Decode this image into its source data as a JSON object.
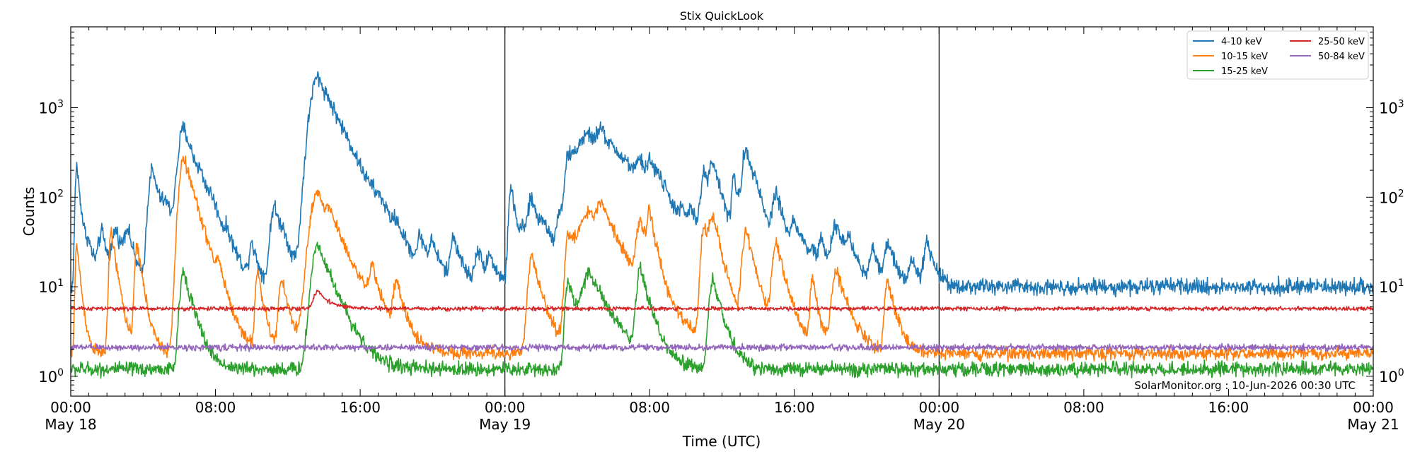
{
  "chart_data": {
    "type": "line",
    "title": "Stix QuickLook",
    "xlabel": "Time (UTC)",
    "ylabel": "Counts",
    "yscale": "log",
    "ylim": [
      0.6,
      8000
    ],
    "xlim": [
      "2026-05-18 00:00",
      "2026-05-21 00:00"
    ],
    "grid": false,
    "legend_position": "top-right",
    "y_ticks": [
      {
        "value": 1,
        "base": "10",
        "exp": "0"
      },
      {
        "value": 10,
        "base": "10",
        "exp": "1"
      },
      {
        "value": 100,
        "base": "10",
        "exp": "2"
      },
      {
        "value": 1000,
        "base": "10",
        "exp": "3"
      }
    ],
    "x_ticks": [
      {
        "x": "2026-05-18 00:00",
        "time": "00:00",
        "date": "May 18"
      },
      {
        "x": "2026-05-18 08:00",
        "time": "08:00",
        "date": ""
      },
      {
        "x": "2026-05-18 16:00",
        "time": "16:00",
        "date": ""
      },
      {
        "x": "2026-05-19 00:00",
        "time": "00:00",
        "date": "May 19"
      },
      {
        "x": "2026-05-19 08:00",
        "time": "08:00",
        "date": ""
      },
      {
        "x": "2026-05-19 16:00",
        "time": "16:00",
        "date": ""
      },
      {
        "x": "2026-05-20 00:00",
        "time": "00:00",
        "date": "May 20"
      },
      {
        "x": "2026-05-20 08:00",
        "time": "08:00",
        "date": ""
      },
      {
        "x": "2026-05-20 16:00",
        "time": "16:00",
        "date": ""
      },
      {
        "x": "2026-05-21 00:00",
        "time": "00:00",
        "date": "May 21"
      }
    ],
    "day_boundaries": [
      "2026-05-19 00:00",
      "2026-05-20 00:00"
    ],
    "annotation": "SolarMonitor.org : 10-Jun-2026 00:30 UTC",
    "series": [
      {
        "name": "4-10 keV",
        "color": "#1f77b4",
        "baseline": 10,
        "noise": 0.1,
        "peaks": [
          [
            "2026-05-18 00:20",
            230,
            0.2
          ],
          [
            "2026-05-18 01:00",
            25,
            0.6
          ],
          [
            "2026-05-18 01:40",
            30,
            0.4
          ],
          [
            "2026-05-18 01:45",
            20,
            0.2
          ],
          [
            "2026-05-18 02:30",
            40,
            0.5
          ],
          [
            "2026-05-18 03:00",
            23,
            0.3
          ],
          [
            "2026-05-18 03:10",
            30,
            0.3
          ],
          [
            "2026-05-18 04:30",
            200,
            0.5
          ],
          [
            "2026-05-18 05:20",
            50,
            0.7
          ],
          [
            "2026-05-18 06:15",
            580,
            0.7
          ],
          [
            "2026-05-18 07:10",
            50,
            0.4
          ],
          [
            "2026-05-18 07:50",
            35,
            0.6
          ],
          [
            "2026-05-18 08:40",
            20,
            0.3
          ],
          [
            "2026-05-18 10:00",
            30,
            0.3
          ],
          [
            "2026-05-18 11:15",
            80,
            0.5
          ],
          [
            "2026-05-18 11:45",
            20,
            0.4
          ],
          [
            "2026-05-18 13:40",
            2200,
            1.0
          ],
          [
            "2026-05-18 14:15",
            60,
            0.5
          ],
          [
            "2026-05-18 15:10",
            30,
            0.4
          ],
          [
            "2026-05-18 16:40",
            25,
            0.4
          ],
          [
            "2026-05-18 17:10",
            30,
            0.5
          ],
          [
            "2026-05-18 18:00",
            25,
            0.4
          ],
          [
            "2026-05-18 19:20",
            30,
            0.4
          ],
          [
            "2026-05-18 20:00",
            25,
            0.4
          ],
          [
            "2026-05-18 21:10",
            35,
            0.4
          ],
          [
            "2026-05-18 22:30",
            25,
            0.4
          ],
          [
            "2026-05-18 23:10",
            20,
            0.4
          ],
          [
            "2026-05-19 00:20",
            130,
            0.3
          ],
          [
            "2026-05-19 01:00",
            28,
            0.5
          ],
          [
            "2026-05-19 01:30",
            85,
            0.6
          ],
          [
            "2026-05-19 02:10",
            30,
            0.4
          ],
          [
            "2026-05-19 03:00",
            30,
            0.4
          ],
          [
            "2026-05-19 03:30",
            180,
            0.4
          ],
          [
            "2026-05-19 04:40",
            480,
            2.0
          ],
          [
            "2026-05-19 05:20",
            240,
            0.6
          ],
          [
            "2026-05-19 06:10",
            60,
            0.5
          ],
          [
            "2026-05-19 06:50",
            50,
            0.6
          ],
          [
            "2026-05-19 07:30",
            130,
            0.5
          ],
          [
            "2026-05-19 08:00",
            140,
            0.3
          ],
          [
            "2026-05-19 08:30",
            80,
            0.5
          ],
          [
            "2026-05-19 09:00",
            20,
            0.5
          ],
          [
            "2026-05-19 09:50",
            30,
            0.5
          ],
          [
            "2026-05-19 10:20",
            35,
            0.4
          ],
          [
            "2026-05-19 11:00",
            160,
            0.4
          ],
          [
            "2026-05-19 11:30",
            200,
            0.5
          ],
          [
            "2026-05-19 12:40",
            140,
            0.3
          ],
          [
            "2026-05-19 13:20",
            320,
            0.5
          ],
          [
            "2026-05-19 13:50",
            65,
            0.4
          ],
          [
            "2026-05-19 15:00",
            100,
            0.5
          ],
          [
            "2026-05-19 16:00",
            40,
            0.4
          ],
          [
            "2026-05-19 16:30",
            20,
            0.4
          ],
          [
            "2026-05-19 17:00",
            20,
            0.3
          ],
          [
            "2026-05-19 17:30",
            30,
            0.4
          ],
          [
            "2026-05-19 18:20",
            45,
            0.6
          ],
          [
            "2026-05-19 19:00",
            25,
            0.4
          ],
          [
            "2026-05-19 20:20",
            25,
            0.4
          ],
          [
            "2026-05-19 21:10",
            30,
            0.4
          ],
          [
            "2026-05-19 22:30",
            20,
            0.4
          ],
          [
            "2026-05-19 23:20",
            30,
            0.4
          ]
        ]
      },
      {
        "name": "10-15 keV",
        "color": "#ff7f0e",
        "baseline": 1.8,
        "noise": 0.08,
        "peaks": [
          [
            "2026-05-18 00:20",
            30,
            0.2
          ],
          [
            "2026-05-18 02:15",
            40,
            0.3
          ],
          [
            "2026-05-18 03:40",
            30,
            0.3
          ],
          [
            "2026-05-18 06:15",
            280,
            0.6
          ],
          [
            "2026-05-18 08:10",
            10,
            0.3
          ],
          [
            "2026-05-18 10:20",
            15,
            0.3
          ],
          [
            "2026-05-18 11:40",
            12,
            0.4
          ],
          [
            "2026-05-18 13:40",
            110,
            1.0
          ],
          [
            "2026-05-18 14:20",
            20,
            0.4
          ],
          [
            "2026-05-18 16:40",
            12,
            0.4
          ],
          [
            "2026-05-18 18:00",
            10,
            0.4
          ],
          [
            "2026-05-19 01:30",
            22,
            0.5
          ],
          [
            "2026-05-19 03:30",
            35,
            0.4
          ],
          [
            "2026-05-19 04:40",
            65,
            1.5
          ],
          [
            "2026-05-19 05:20",
            50,
            0.6
          ],
          [
            "2026-05-19 07:30",
            45,
            0.5
          ],
          [
            "2026-05-19 08:00",
            50,
            0.3
          ],
          [
            "2026-05-19 11:00",
            48,
            0.4
          ],
          [
            "2026-05-19 11:30",
            50,
            0.5
          ],
          [
            "2026-05-19 13:20",
            40,
            0.5
          ],
          [
            "2026-05-19 15:00",
            30,
            0.5
          ],
          [
            "2026-05-19 17:00",
            12,
            0.3
          ],
          [
            "2026-05-19 18:20",
            15,
            0.6
          ],
          [
            "2026-05-19 21:10",
            12,
            0.4
          ]
        ]
      },
      {
        "name": "15-25 keV",
        "color": "#2ca02c",
        "baseline": 1.2,
        "noise": 0.09,
        "peaks": [
          [
            "2026-05-18 06:15",
            15,
            0.5
          ],
          [
            "2026-05-18 13:40",
            30,
            0.8
          ],
          [
            "2026-05-19 03:30",
            12,
            0.4
          ],
          [
            "2026-05-19 04:40",
            14,
            1.0
          ],
          [
            "2026-05-19 07:30",
            15,
            0.5
          ],
          [
            "2026-05-19 11:30",
            12,
            0.5
          ]
        ]
      },
      {
        "name": "25-50 keV",
        "color": "#d62728",
        "baseline": 5.7,
        "noise": 0.025,
        "peaks": [
          [
            "2026-05-18 13:40",
            9,
            0.6
          ]
        ]
      },
      {
        "name": "50-84 keV",
        "color": "#9467bd",
        "baseline": 2.1,
        "noise": 0.04,
        "peaks": []
      }
    ]
  }
}
